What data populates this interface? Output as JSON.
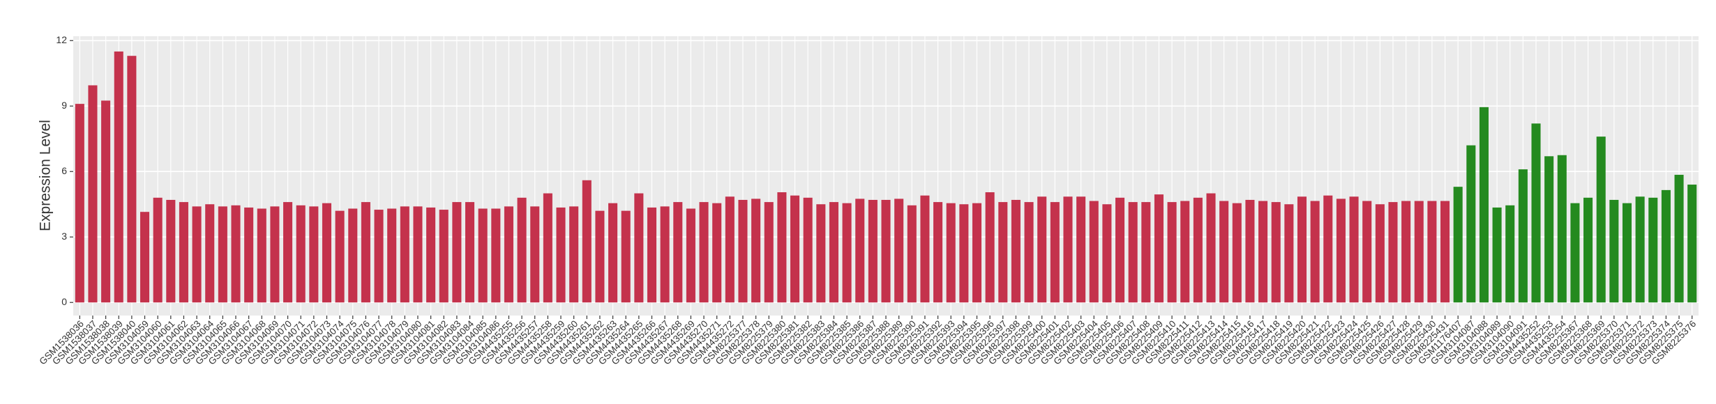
{
  "chart_data": {
    "type": "bar",
    "y_label": "Expression Level",
    "categories": [
      "GSM1538036",
      "GSM1538037",
      "GSM1538038",
      "GSM1538039",
      "GSM1538040",
      "GSM3104059",
      "GSM3104060",
      "GSM3104061",
      "GSM3104062",
      "GSM3104063",
      "GSM3104064",
      "GSM3104065",
      "GSM3104066",
      "GSM3104067",
      "GSM3104068",
      "GSM3104069",
      "GSM3104070",
      "GSM3104071",
      "GSM3104072",
      "GSM3104073",
      "GSM3104074",
      "GSM3104075",
      "GSM3104076",
      "GSM3104077",
      "GSM3104078",
      "GSM3104079",
      "GSM3104080",
      "GSM3104081",
      "GSM3104082",
      "GSM3104083",
      "GSM3104084",
      "GSM3104085",
      "GSM3104086",
      "GSM4435255",
      "GSM4435256",
      "GSM4435257",
      "GSM4435258",
      "GSM4435259",
      "GSM4435260",
      "GSM4435261",
      "GSM4435262",
      "GSM4435263",
      "GSM4435264",
      "GSM4435265",
      "GSM4435266",
      "GSM4435267",
      "GSM4435268",
      "GSM4435269",
      "GSM4435270",
      "GSM4435271",
      "GSM4435272",
      "GSM8225377",
      "GSM8225378",
      "GSM8225379",
      "GSM8225380",
      "GSM8225381",
      "GSM8225382",
      "GSM8225383",
      "GSM8225384",
      "GSM8225385",
      "GSM8225386",
      "GSM8225387",
      "GSM8225388",
      "GSM8225389",
      "GSM8225390",
      "GSM8225391",
      "GSM8225392",
      "GSM8225393",
      "GSM8225394",
      "GSM8225395",
      "GSM8225396",
      "GSM8225397",
      "GSM8225398",
      "GSM8225399",
      "GSM8225400",
      "GSM8225401",
      "GSM8225402",
      "GSM8225403",
      "GSM8225404",
      "GSM8225405",
      "GSM8225406",
      "GSM8225407",
      "GSM8225408",
      "GSM8225409",
      "GSM8225410",
      "GSM8225411",
      "GSM8225412",
      "GSM8225413",
      "GSM8225414",
      "GSM8225415",
      "GSM8225416",
      "GSM8225417",
      "GSM8225418",
      "GSM8225419",
      "GSM8225420",
      "GSM8225421",
      "GSM8225422",
      "GSM8225423",
      "GSM8225424",
      "GSM8225425",
      "GSM8225426",
      "GSM8225427",
      "GSM8225428",
      "GSM8225429",
      "GSM8225430",
      "GSM8225431",
      "GSM1176407",
      "GSM3104087",
      "GSM3104088",
      "GSM3104089",
      "GSM3104090",
      "GSM3104091",
      "GSM4435252",
      "GSM4435253",
      "GSM4435254",
      "GSM8225367",
      "GSM8225368",
      "GSM8225369",
      "GSM8225370",
      "GSM8225371",
      "GSM8225372",
      "GSM8225373",
      "GSM8225374",
      "GSM8225375",
      "GSM8225376"
    ],
    "values": [
      9.1,
      9.95,
      9.25,
      11.5,
      11.3,
      4.15,
      4.8,
      4.7,
      4.6,
      4.4,
      4.5,
      4.4,
      4.45,
      4.35,
      4.3,
      4.4,
      4.6,
      4.45,
      4.4,
      4.55,
      4.2,
      4.3,
      4.6,
      4.25,
      4.3,
      4.4,
      4.4,
      4.35,
      4.25,
      4.6,
      4.6,
      4.3,
      4.3,
      4.4,
      4.8,
      4.4,
      5.0,
      4.35,
      4.4,
      5.6,
      4.2,
      4.55,
      4.2,
      5.0,
      4.35,
      4.4,
      4.6,
      4.3,
      4.6,
      4.55,
      4.85,
      4.7,
      4.75,
      4.6,
      5.05,
      4.9,
      4.8,
      4.5,
      4.6,
      4.55,
      4.75,
      4.7,
      4.7,
      4.75,
      4.45,
      4.9,
      4.6,
      4.55,
      4.5,
      4.55,
      5.05,
      4.6,
      4.7,
      4.6,
      4.85,
      4.6,
      4.85,
      4.85,
      4.65,
      4.5,
      4.8,
      4.6,
      4.6,
      4.95,
      4.6,
      4.65,
      4.8,
      5.0,
      4.65,
      4.55,
      4.7,
      4.65,
      4.6,
      4.5,
      4.85,
      4.65,
      4.9,
      4.75,
      4.85,
      4.65,
      4.5,
      4.6,
      4.65,
      4.65,
      4.65,
      4.65,
      5.3,
      7.2,
      8.95,
      4.35,
      4.45,
      6.1,
      8.2,
      6.7,
      6.75,
      4.55,
      4.8,
      7.6,
      4.7,
      4.55,
      4.85,
      4.8,
      5.15,
      5.85,
      5.4
    ],
    "bar_colors": [
      "#c4324c",
      "#c4324c",
      "#c4324c",
      "#c4324c",
      "#c4324c",
      "#c4324c",
      "#c4324c",
      "#c4324c",
      "#c4324c",
      "#c4324c",
      "#c4324c",
      "#c4324c",
      "#c4324c",
      "#c4324c",
      "#c4324c",
      "#c4324c",
      "#c4324c",
      "#c4324c",
      "#c4324c",
      "#c4324c",
      "#c4324c",
      "#c4324c",
      "#c4324c",
      "#c4324c",
      "#c4324c",
      "#c4324c",
      "#c4324c",
      "#c4324c",
      "#c4324c",
      "#c4324c",
      "#c4324c",
      "#c4324c",
      "#c4324c",
      "#c4324c",
      "#c4324c",
      "#c4324c",
      "#c4324c",
      "#c4324c",
      "#c4324c",
      "#c4324c",
      "#c4324c",
      "#c4324c",
      "#c4324c",
      "#c4324c",
      "#c4324c",
      "#c4324c",
      "#c4324c",
      "#c4324c",
      "#c4324c",
      "#c4324c",
      "#c4324c",
      "#c4324c",
      "#c4324c",
      "#c4324c",
      "#c4324c",
      "#c4324c",
      "#c4324c",
      "#c4324c",
      "#c4324c",
      "#c4324c",
      "#c4324c",
      "#c4324c",
      "#c4324c",
      "#c4324c",
      "#c4324c",
      "#c4324c",
      "#c4324c",
      "#c4324c",
      "#c4324c",
      "#c4324c",
      "#c4324c",
      "#c4324c",
      "#c4324c",
      "#c4324c",
      "#c4324c",
      "#c4324c",
      "#c4324c",
      "#c4324c",
      "#c4324c",
      "#c4324c",
      "#c4324c",
      "#c4324c",
      "#c4324c",
      "#c4324c",
      "#c4324c",
      "#c4324c",
      "#c4324c",
      "#c4324c",
      "#c4324c",
      "#c4324c",
      "#c4324c",
      "#c4324c",
      "#c4324c",
      "#c4324c",
      "#c4324c",
      "#c4324c",
      "#c4324c",
      "#c4324c",
      "#c4324c",
      "#c4324c",
      "#c4324c",
      "#c4324c",
      "#c4324c",
      "#c4324c",
      "#c4324c",
      "#c4324c",
      "#248a1f",
      "#248a1f",
      "#248a1f",
      "#248a1f",
      "#248a1f",
      "#248a1f",
      "#248a1f",
      "#248a1f",
      "#248a1f",
      "#248a1f",
      "#248a1f",
      "#248a1f",
      "#248a1f",
      "#248a1f",
      "#248a1f",
      "#248a1f",
      "#248a1f",
      "#248a1f",
      "#248a1f"
    ],
    "ylim": [
      -0.6,
      12.2
    ],
    "yticks": [
      0,
      3,
      6,
      9,
      12
    ],
    "grid": true
  }
}
